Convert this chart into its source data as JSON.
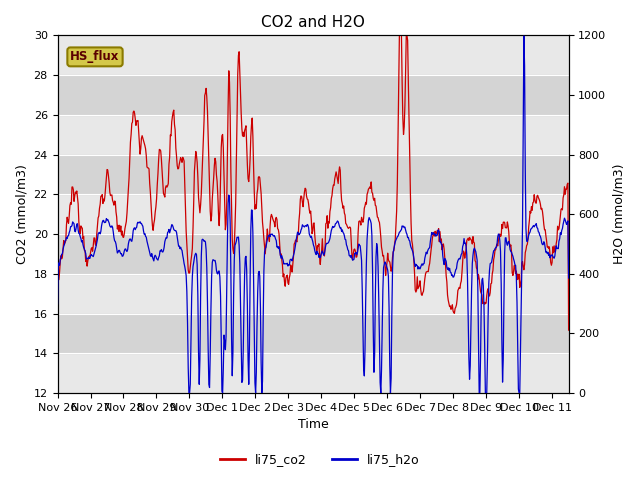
{
  "title": "CO2 and H2O",
  "xlabel": "Time",
  "ylabel_left": "CO2 (mmol/m3)",
  "ylabel_right": "H2O (mmol/m3)",
  "ylim_left": [
    12,
    30
  ],
  "ylim_right": [
    0,
    1200
  ],
  "yticks_left": [
    12,
    14,
    16,
    18,
    20,
    22,
    24,
    26,
    28,
    30
  ],
  "yticks_right": [
    0,
    200,
    400,
    600,
    800,
    1000,
    1200
  ],
  "xtick_labels": [
    "Nov 26",
    "Nov 27",
    "Nov 28",
    "Nov 29",
    "Nov 30",
    "Dec 1",
    "Dec 2",
    "Dec 3",
    "Dec 4",
    "Dec 5",
    "Dec 6",
    "Dec 7",
    "Dec 8",
    "Dec 9",
    "Dec 10",
    "Dec 11"
  ],
  "legend_labels": [
    "li75_co2",
    "li75_h2o"
  ],
  "co2_color": "#cc0000",
  "h2o_color": "#0000cc",
  "background_color": "#ffffff",
  "plot_bg_color": "#e8e8e8",
  "band_color": "#d4d4d4",
  "grid_color": "#ffffff",
  "annotation_text": "HS_flux",
  "annotation_bg": "#d4c84a",
  "annotation_border": "#8a7a00",
  "title_fontsize": 11,
  "axis_fontsize": 9,
  "tick_fontsize": 8,
  "legend_fontsize": 9
}
